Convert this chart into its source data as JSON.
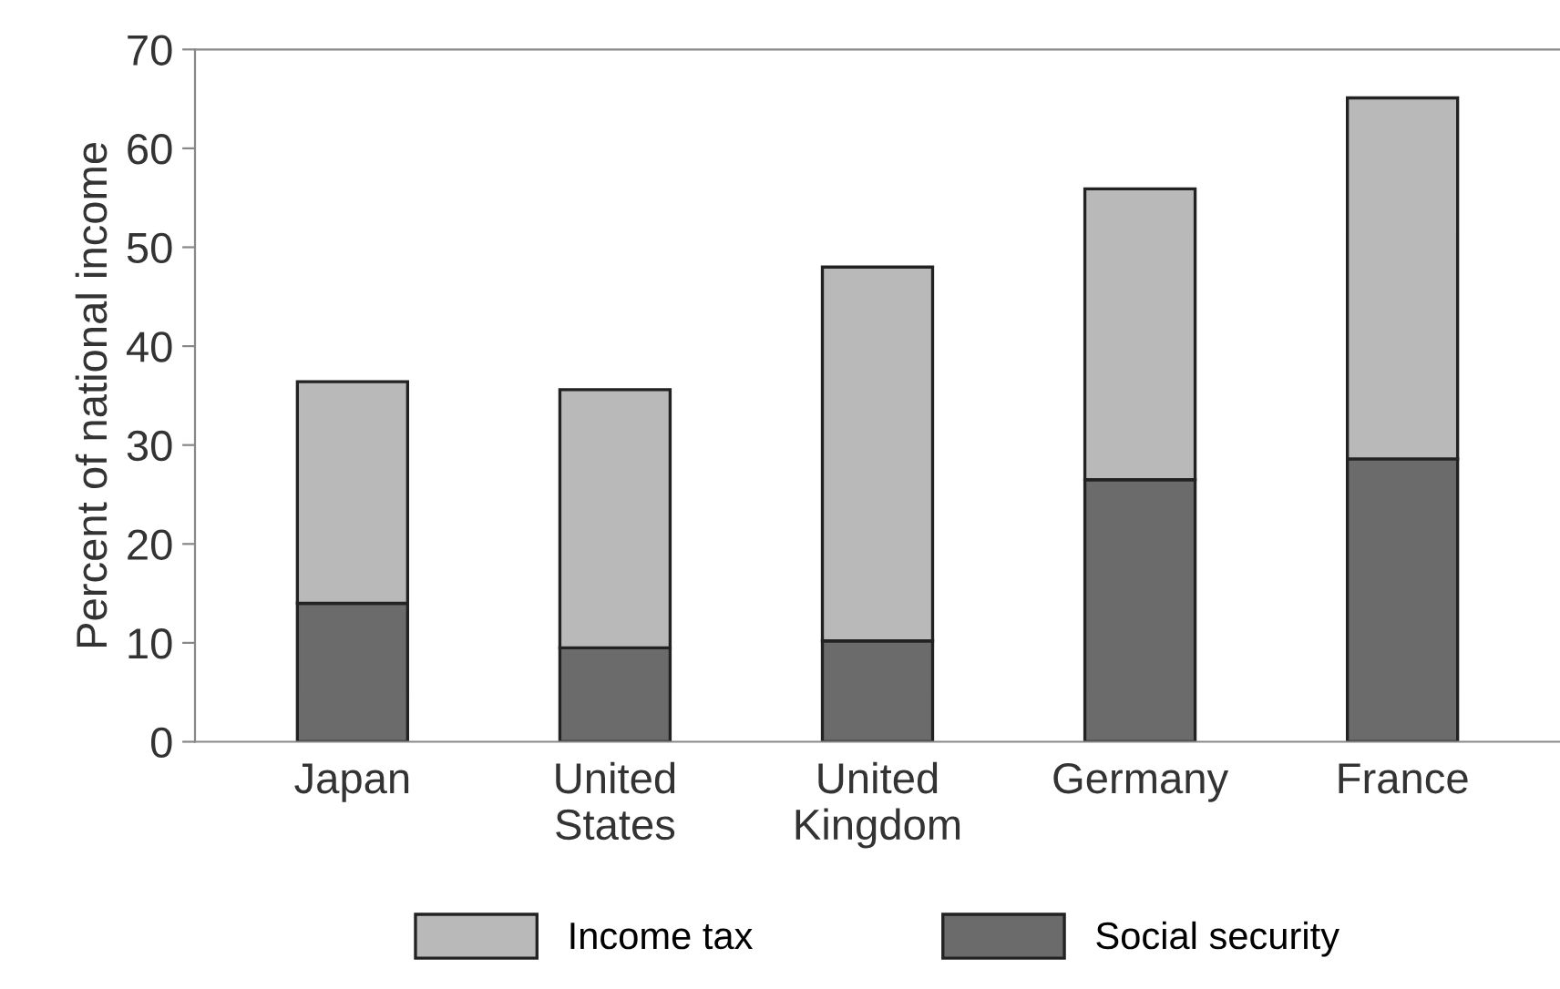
{
  "chart_data": {
    "type": "bar",
    "stacked": true,
    "ylabel": "Percent of national income",
    "categories": [
      "Japan",
      "United\nStates",
      "United\nKingdom",
      "Germany",
      "France"
    ],
    "series": [
      {
        "name": "Social security",
        "color": "#6b6b6b",
        "values": [
          14.0,
          9.5,
          10.2,
          26.5,
          28.6
        ]
      },
      {
        "name": "Income tax",
        "color": "#b9b9b9",
        "values": [
          22.4,
          26.1,
          37.8,
          29.4,
          36.5
        ]
      }
    ],
    "ylim": [
      0,
      70
    ],
    "yticks": [
      0,
      10,
      20,
      30,
      40,
      50,
      60,
      70
    ],
    "grid": false,
    "legend": "bottom"
  }
}
